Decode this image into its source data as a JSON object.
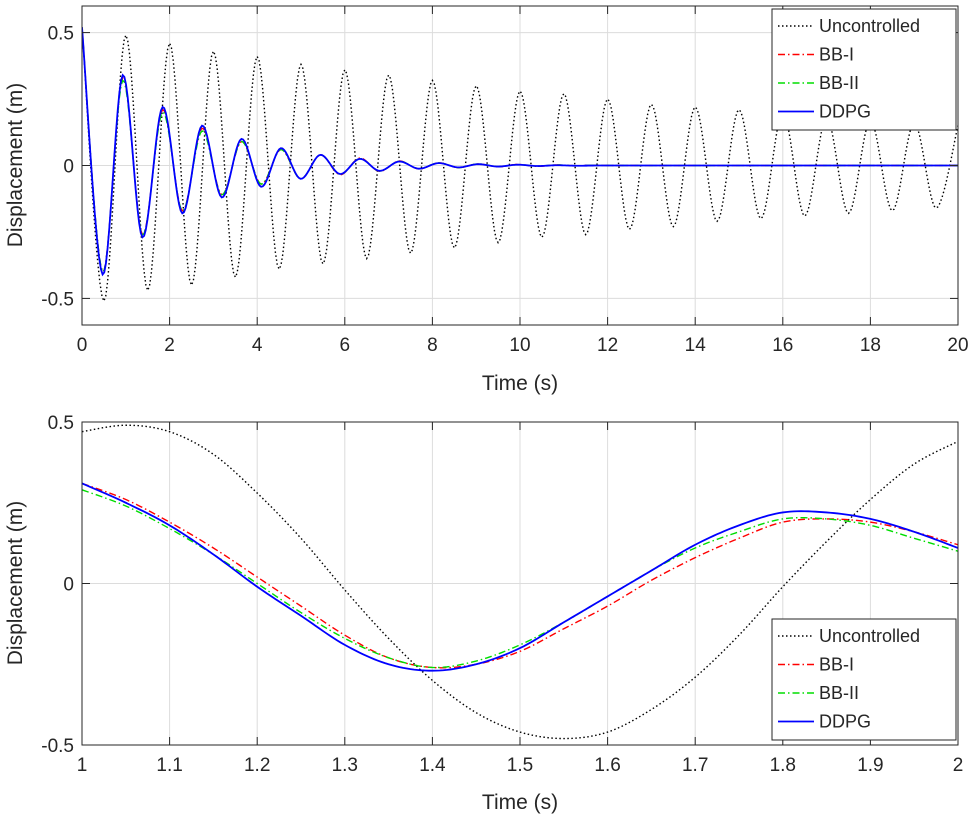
{
  "chart_data": [
    {
      "type": "line",
      "title": "",
      "xlabel": "Time (s)",
      "ylabel": "Displacement (m)",
      "xlim": [
        0,
        20
      ],
      "ylim": [
        -0.6,
        0.6
      ],
      "xticks": [
        0,
        2,
        4,
        6,
        8,
        10,
        12,
        14,
        16,
        18,
        20
      ],
      "xtick_labels": [
        "0",
        "2",
        "4",
        "6",
        "8",
        "10",
        "12",
        "14",
        "16",
        "18",
        "20"
      ],
      "yticks": [
        -0.5,
        0,
        0.5
      ],
      "ytick_labels": [
        "-0.5",
        "0",
        "0.5"
      ],
      "grid": true,
      "legend_position": "top-right",
      "series": [
        {
          "name": "Uncontrolled",
          "color": "#000000",
          "style": "dotted",
          "x": [
            0.0,
            0.5,
            1.0,
            1.5,
            2.0,
            2.5,
            3.0,
            3.5,
            4.0,
            4.5,
            5.0,
            5.5,
            6.0,
            6.5,
            7.0,
            7.5,
            8.0,
            8.5,
            9.0,
            9.5,
            10.0,
            10.5,
            11.0,
            11.5,
            12.0,
            12.5,
            13.0,
            13.5,
            14.0,
            14.5,
            15.0,
            15.5,
            16.0,
            16.5,
            17.0,
            17.5,
            18.0,
            18.5,
            19.0,
            19.5,
            20.0
          ],
          "y": [
            0.52,
            -0.51,
            0.49,
            -0.47,
            0.46,
            -0.45,
            0.43,
            -0.42,
            0.41,
            -0.39,
            0.38,
            -0.37,
            0.36,
            -0.35,
            0.34,
            -0.33,
            0.32,
            -0.31,
            0.3,
            -0.29,
            0.28,
            -0.27,
            0.27,
            -0.26,
            0.25,
            -0.24,
            0.23,
            -0.23,
            0.22,
            -0.21,
            0.21,
            -0.2,
            0.2,
            -0.19,
            0.18,
            -0.18,
            0.17,
            -0.17,
            0.16,
            -0.16,
            0.15
          ]
        },
        {
          "name": "BB-I",
          "color": "#ff0000",
          "style": "dashdot",
          "x": [
            0.0,
            0.47,
            0.93,
            1.38,
            1.84,
            2.29,
            2.74,
            3.19,
            3.64,
            4.09,
            4.54,
            4.99,
            5.44,
            5.89,
            6.34,
            6.79,
            7.24,
            7.69,
            8.14,
            8.59,
            9.04,
            9.49,
            9.94,
            10.39,
            10.84,
            11.29,
            11.74,
            12.19,
            20.0
          ],
          "y": [
            0.52,
            -0.4,
            0.33,
            -0.26,
            0.21,
            -0.17,
            0.14,
            -0.11,
            0.09,
            -0.07,
            0.06,
            -0.05,
            0.04,
            -0.035,
            0.028,
            -0.022,
            0.017,
            -0.013,
            0.01,
            -0.008,
            0.006,
            -0.005,
            0.004,
            -0.003,
            0.002,
            -0.001,
            0.001,
            0.0,
            0.0
          ]
        },
        {
          "name": "BB-II",
          "color": "#00dd00",
          "style": "dashdot",
          "x": [
            0.0,
            0.47,
            0.93,
            1.38,
            1.84,
            2.29,
            2.74,
            3.19,
            3.64,
            4.09,
            4.54,
            4.99,
            5.44,
            5.89,
            6.34,
            6.79,
            7.24,
            7.69,
            8.14,
            8.59,
            9.04,
            9.49,
            9.94,
            10.39,
            10.84,
            11.29,
            11.74,
            12.19,
            20.0
          ],
          "y": [
            0.52,
            -0.4,
            0.32,
            -0.26,
            0.2,
            -0.17,
            0.13,
            -0.11,
            0.09,
            -0.07,
            0.06,
            -0.05,
            0.04,
            -0.033,
            0.026,
            -0.021,
            0.016,
            -0.012,
            0.01,
            -0.008,
            0.006,
            -0.004,
            0.003,
            -0.002,
            0.002,
            -0.001,
            0.001,
            0.0,
            0.0
          ]
        },
        {
          "name": "DDPG",
          "color": "#0000ff",
          "style": "solid",
          "x": [
            0.0,
            0.47,
            0.93,
            1.38,
            1.84,
            2.29,
            2.74,
            3.19,
            3.64,
            4.09,
            4.54,
            4.99,
            5.44,
            5.89,
            6.34,
            6.79,
            7.24,
            7.69,
            8.14,
            8.59,
            9.04,
            9.49,
            9.94,
            10.39,
            10.84,
            11.29,
            11.74,
            12.19,
            20.0
          ],
          "y": [
            0.52,
            -0.41,
            0.34,
            -0.27,
            0.22,
            -0.18,
            0.15,
            -0.12,
            0.1,
            -0.08,
            0.065,
            -0.05,
            0.04,
            -0.032,
            0.025,
            -0.02,
            0.015,
            -0.012,
            0.009,
            -0.007,
            0.005,
            -0.004,
            0.003,
            -0.002,
            0.001,
            -0.001,
            0.0,
            0.0,
            0.0
          ]
        }
      ]
    },
    {
      "type": "line",
      "title": "",
      "xlabel": "Time (s)",
      "ylabel": "Displacement (m)",
      "xlim": [
        1,
        2
      ],
      "ylim": [
        -0.5,
        0.5
      ],
      "xticks": [
        1,
        1.1,
        1.2,
        1.3,
        1.4,
        1.5,
        1.6,
        1.7,
        1.8,
        1.9,
        2
      ],
      "xtick_labels": [
        "1",
        "1.1",
        "1.2",
        "1.3",
        "1.4",
        "1.5",
        "1.6",
        "1.7",
        "1.8",
        "1.9",
        "2"
      ],
      "yticks": [
        -0.5,
        0,
        0.5
      ],
      "ytick_labels": [
        "-0.5",
        "0",
        "0.5"
      ],
      "grid": true,
      "legend_position": "bottom-right",
      "series": [
        {
          "name": "Uncontrolled",
          "color": "#000000",
          "style": "dotted",
          "x": [
            1.0,
            1.05,
            1.1,
            1.15,
            1.2,
            1.25,
            1.3,
            1.35,
            1.4,
            1.45,
            1.5,
            1.55,
            1.6,
            1.65,
            1.7,
            1.75,
            1.8,
            1.85,
            1.9,
            1.95,
            2.0
          ],
          "y": [
            0.47,
            0.49,
            0.47,
            0.4,
            0.28,
            0.14,
            -0.02,
            -0.17,
            -0.3,
            -0.4,
            -0.46,
            -0.48,
            -0.46,
            -0.39,
            -0.29,
            -0.16,
            -0.01,
            0.13,
            0.26,
            0.37,
            0.44
          ]
        },
        {
          "name": "BB-I",
          "color": "#ff0000",
          "style": "dashdot",
          "x": [
            1.0,
            1.05,
            1.1,
            1.15,
            1.2,
            1.25,
            1.3,
            1.35,
            1.4,
            1.45,
            1.5,
            1.55,
            1.6,
            1.65,
            1.7,
            1.75,
            1.8,
            1.85,
            1.9,
            1.95,
            2.0
          ],
          "y": [
            0.31,
            0.26,
            0.19,
            0.11,
            0.02,
            -0.07,
            -0.16,
            -0.23,
            -0.26,
            -0.25,
            -0.21,
            -0.14,
            -0.07,
            0.01,
            0.08,
            0.14,
            0.19,
            0.2,
            0.19,
            0.16,
            0.12
          ]
        },
        {
          "name": "BB-II",
          "color": "#00dd00",
          "style": "dashdot",
          "x": [
            1.0,
            1.05,
            1.1,
            1.15,
            1.2,
            1.25,
            1.3,
            1.35,
            1.4,
            1.45,
            1.5,
            1.55,
            1.6,
            1.65,
            1.7,
            1.75,
            1.8,
            1.85,
            1.9,
            1.95,
            2.0
          ],
          "y": [
            0.29,
            0.24,
            0.17,
            0.09,
            0.0,
            -0.09,
            -0.17,
            -0.23,
            -0.26,
            -0.24,
            -0.19,
            -0.12,
            -0.04,
            0.04,
            0.11,
            0.16,
            0.2,
            0.2,
            0.18,
            0.14,
            0.1
          ]
        },
        {
          "name": "DDPG",
          "color": "#0000ff",
          "style": "solid",
          "x": [
            1.0,
            1.05,
            1.1,
            1.15,
            1.2,
            1.25,
            1.3,
            1.35,
            1.4,
            1.45,
            1.5,
            1.55,
            1.6,
            1.65,
            1.7,
            1.75,
            1.8,
            1.85,
            1.9,
            1.95,
            2.0
          ],
          "y": [
            0.31,
            0.25,
            0.18,
            0.09,
            -0.01,
            -0.1,
            -0.19,
            -0.25,
            -0.27,
            -0.25,
            -0.2,
            -0.12,
            -0.04,
            0.04,
            0.12,
            0.18,
            0.22,
            0.22,
            0.2,
            0.16,
            0.11
          ]
        }
      ]
    }
  ]
}
